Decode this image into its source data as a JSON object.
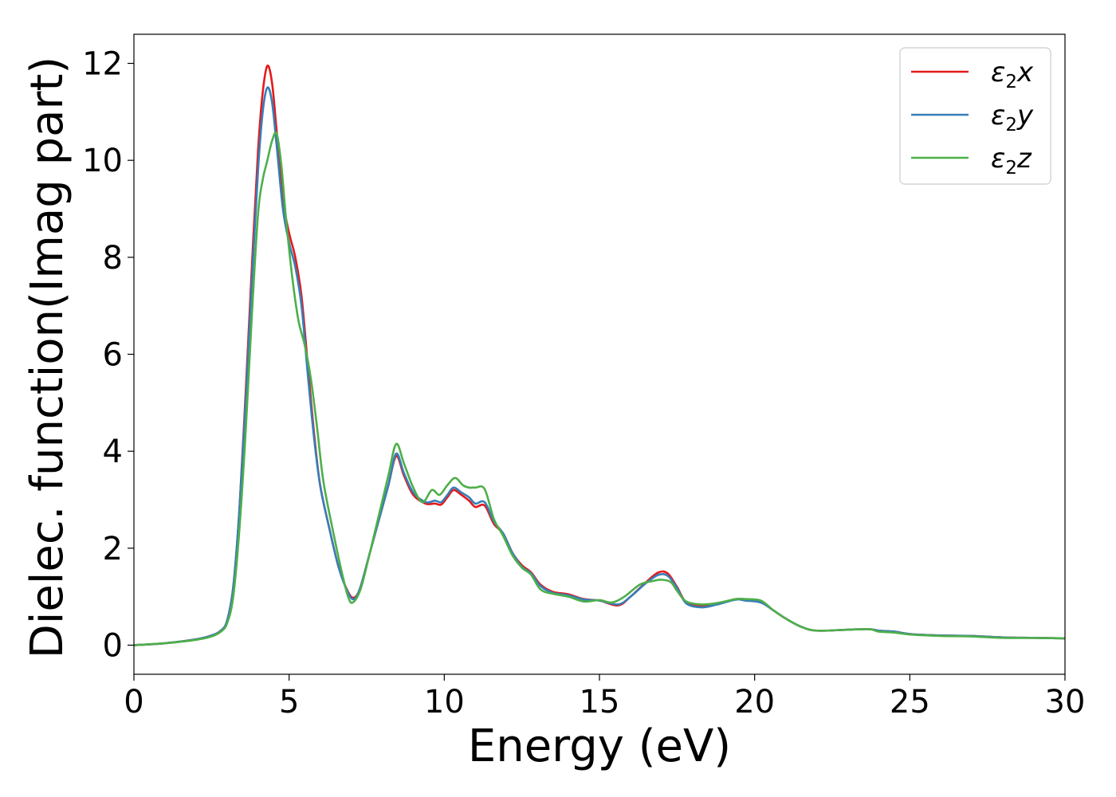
{
  "chart_data": {
    "type": "line",
    "xlabel": "Energy (eV)",
    "ylabel": "Dielec. function(Imag part)",
    "xlim": [
      0,
      30
    ],
    "ylim": [
      -0.6,
      12.6
    ],
    "xticks": [
      0,
      5,
      10,
      15,
      20,
      25,
      30
    ],
    "yticks": [
      0,
      2,
      4,
      6,
      8,
      10,
      12
    ],
    "grid": false,
    "legend_position": "top-right",
    "series": [
      {
        "name": "ε₂x",
        "legend_main": "ε",
        "legend_sub": "2",
        "legend_suffix": "x",
        "color": "#e41a1c",
        "points": [
          [
            0,
            0
          ],
          [
            1,
            0.04
          ],
          [
            2,
            0.12
          ],
          [
            2.5,
            0.2
          ],
          [
            2.8,
            0.3
          ],
          [
            3.0,
            0.5
          ],
          [
            3.2,
            1.2
          ],
          [
            3.4,
            2.8
          ],
          [
            3.6,
            5.2
          ],
          [
            3.8,
            7.8
          ],
          [
            4.0,
            10.2
          ],
          [
            4.15,
            11.4
          ],
          [
            4.3,
            11.95
          ],
          [
            4.45,
            11.6
          ],
          [
            4.6,
            10.6
          ],
          [
            4.8,
            9.2
          ],
          [
            5.0,
            8.5
          ],
          [
            5.2,
            8.0
          ],
          [
            5.4,
            7.2
          ],
          [
            5.6,
            5.8
          ],
          [
            5.8,
            4.4
          ],
          [
            6.0,
            3.3
          ],
          [
            6.3,
            2.4
          ],
          [
            6.6,
            1.6
          ],
          [
            6.9,
            1.1
          ],
          [
            7.1,
            0.98
          ],
          [
            7.3,
            1.2
          ],
          [
            7.6,
            1.9
          ],
          [
            7.9,
            2.6
          ],
          [
            8.2,
            3.3
          ],
          [
            8.45,
            3.9
          ],
          [
            8.7,
            3.5
          ],
          [
            9.0,
            3.1
          ],
          [
            9.4,
            2.92
          ],
          [
            9.7,
            2.92
          ],
          [
            9.9,
            2.9
          ],
          [
            10.1,
            3.05
          ],
          [
            10.3,
            3.2
          ],
          [
            10.55,
            3.1
          ],
          [
            10.8,
            2.98
          ],
          [
            11.0,
            2.85
          ],
          [
            11.3,
            2.88
          ],
          [
            11.6,
            2.5
          ],
          [
            11.9,
            2.3
          ],
          [
            12.2,
            1.9
          ],
          [
            12.5,
            1.65
          ],
          [
            12.8,
            1.5
          ],
          [
            13.1,
            1.25
          ],
          [
            13.5,
            1.1
          ],
          [
            14.0,
            1.05
          ],
          [
            14.5,
            0.95
          ],
          [
            15.0,
            0.92
          ],
          [
            15.6,
            0.82
          ],
          [
            16.0,
            1.0
          ],
          [
            16.5,
            1.3
          ],
          [
            16.9,
            1.5
          ],
          [
            17.2,
            1.48
          ],
          [
            17.5,
            1.2
          ],
          [
            17.8,
            0.88
          ],
          [
            18.3,
            0.8
          ],
          [
            18.8,
            0.85
          ],
          [
            19.4,
            0.95
          ],
          [
            19.7,
            0.93
          ],
          [
            20.2,
            0.9
          ],
          [
            20.6,
            0.72
          ],
          [
            21.0,
            0.55
          ],
          [
            21.5,
            0.38
          ],
          [
            22.0,
            0.3
          ],
          [
            23.0,
            0.32
          ],
          [
            23.7,
            0.33
          ],
          [
            24.0,
            0.3
          ],
          [
            24.5,
            0.28
          ],
          [
            25.0,
            0.23
          ],
          [
            26.0,
            0.2
          ],
          [
            27.0,
            0.19
          ],
          [
            28.0,
            0.16
          ],
          [
            29.0,
            0.15
          ],
          [
            30.0,
            0.14
          ]
        ]
      },
      {
        "name": "ε₂y",
        "legend_main": "ε",
        "legend_sub": "2",
        "legend_suffix": "y",
        "color": "#377eb8",
        "points": [
          [
            0,
            0
          ],
          [
            1,
            0.04
          ],
          [
            2,
            0.12
          ],
          [
            2.5,
            0.2
          ],
          [
            2.8,
            0.3
          ],
          [
            3.0,
            0.5
          ],
          [
            3.2,
            1.2
          ],
          [
            3.4,
            2.8
          ],
          [
            3.6,
            5.0
          ],
          [
            3.8,
            7.5
          ],
          [
            4.0,
            9.8
          ],
          [
            4.15,
            11.0
          ],
          [
            4.3,
            11.5
          ],
          [
            4.45,
            11.2
          ],
          [
            4.6,
            10.3
          ],
          [
            4.8,
            9.0
          ],
          [
            5.0,
            8.3
          ],
          [
            5.2,
            7.8
          ],
          [
            5.4,
            7.0
          ],
          [
            5.6,
            5.6
          ],
          [
            5.8,
            4.3
          ],
          [
            6.0,
            3.3
          ],
          [
            6.3,
            2.4
          ],
          [
            6.6,
            1.6
          ],
          [
            6.9,
            1.08
          ],
          [
            7.1,
            0.95
          ],
          [
            7.3,
            1.2
          ],
          [
            7.6,
            1.9
          ],
          [
            7.9,
            2.6
          ],
          [
            8.2,
            3.3
          ],
          [
            8.45,
            3.95
          ],
          [
            8.7,
            3.55
          ],
          [
            9.0,
            3.15
          ],
          [
            9.4,
            2.95
          ],
          [
            9.7,
            2.98
          ],
          [
            9.9,
            2.95
          ],
          [
            10.1,
            3.1
          ],
          [
            10.3,
            3.25
          ],
          [
            10.55,
            3.15
          ],
          [
            10.8,
            3.05
          ],
          [
            11.0,
            2.92
          ],
          [
            11.3,
            2.95
          ],
          [
            11.6,
            2.55
          ],
          [
            11.9,
            2.3
          ],
          [
            12.2,
            1.9
          ],
          [
            12.5,
            1.62
          ],
          [
            12.8,
            1.48
          ],
          [
            13.1,
            1.22
          ],
          [
            13.5,
            1.08
          ],
          [
            14.0,
            1.03
          ],
          [
            14.5,
            0.94
          ],
          [
            15.0,
            0.92
          ],
          [
            15.6,
            0.84
          ],
          [
            16.0,
            1.0
          ],
          [
            16.5,
            1.28
          ],
          [
            16.9,
            1.45
          ],
          [
            17.2,
            1.43
          ],
          [
            17.5,
            1.18
          ],
          [
            17.8,
            0.86
          ],
          [
            18.3,
            0.78
          ],
          [
            18.8,
            0.84
          ],
          [
            19.4,
            0.94
          ],
          [
            19.7,
            0.92
          ],
          [
            20.2,
            0.88
          ],
          [
            20.6,
            0.72
          ],
          [
            21.0,
            0.55
          ],
          [
            21.5,
            0.38
          ],
          [
            22.0,
            0.3
          ],
          [
            23.0,
            0.32
          ],
          [
            23.7,
            0.33
          ],
          [
            24.0,
            0.3
          ],
          [
            24.5,
            0.28
          ],
          [
            25.0,
            0.23
          ],
          [
            26.0,
            0.2
          ],
          [
            27.0,
            0.19
          ],
          [
            28.0,
            0.16
          ],
          [
            29.0,
            0.15
          ],
          [
            30.0,
            0.14
          ]
        ]
      },
      {
        "name": "ε₂z",
        "legend_main": "ε",
        "legend_sub": "2",
        "legend_suffix": "z",
        "color": "#4daf4a",
        "points": [
          [
            0,
            0
          ],
          [
            1,
            0.04
          ],
          [
            2,
            0.11
          ],
          [
            2.5,
            0.18
          ],
          [
            2.8,
            0.28
          ],
          [
            3.0,
            0.45
          ],
          [
            3.2,
            1.0
          ],
          [
            3.4,
            2.4
          ],
          [
            3.6,
            4.4
          ],
          [
            3.8,
            6.8
          ],
          [
            4.0,
            8.9
          ],
          [
            4.15,
            9.6
          ],
          [
            4.3,
            10.0
          ],
          [
            4.45,
            10.4
          ],
          [
            4.6,
            10.55
          ],
          [
            4.75,
            9.9
          ],
          [
            4.9,
            8.8
          ],
          [
            5.1,
            7.6
          ],
          [
            5.3,
            6.7
          ],
          [
            5.5,
            6.2
          ],
          [
            5.7,
            5.5
          ],
          [
            5.9,
            4.5
          ],
          [
            6.1,
            3.4
          ],
          [
            6.4,
            2.4
          ],
          [
            6.7,
            1.5
          ],
          [
            6.9,
            1.0
          ],
          [
            7.05,
            0.88
          ],
          [
            7.3,
            1.15
          ],
          [
            7.6,
            1.9
          ],
          [
            7.9,
            2.7
          ],
          [
            8.2,
            3.5
          ],
          [
            8.45,
            4.15
          ],
          [
            8.7,
            3.75
          ],
          [
            9.0,
            3.25
          ],
          [
            9.3,
            2.95
          ],
          [
            9.6,
            3.2
          ],
          [
            9.85,
            3.1
          ],
          [
            10.1,
            3.3
          ],
          [
            10.35,
            3.45
          ],
          [
            10.6,
            3.3
          ],
          [
            10.8,
            3.25
          ],
          [
            11.0,
            3.25
          ],
          [
            11.3,
            3.22
          ],
          [
            11.6,
            2.6
          ],
          [
            11.9,
            2.25
          ],
          [
            12.2,
            1.85
          ],
          [
            12.5,
            1.6
          ],
          [
            12.8,
            1.45
          ],
          [
            13.1,
            1.15
          ],
          [
            13.5,
            1.06
          ],
          [
            14.0,
            1.0
          ],
          [
            14.5,
            0.9
          ],
          [
            15.0,
            0.93
          ],
          [
            15.4,
            0.88
          ],
          [
            15.8,
            1.0
          ],
          [
            16.3,
            1.25
          ],
          [
            16.7,
            1.32
          ],
          [
            17.0,
            1.35
          ],
          [
            17.3,
            1.3
          ],
          [
            17.5,
            1.12
          ],
          [
            17.8,
            0.9
          ],
          [
            18.3,
            0.84
          ],
          [
            18.8,
            0.87
          ],
          [
            19.4,
            0.95
          ],
          [
            19.7,
            0.95
          ],
          [
            20.2,
            0.92
          ],
          [
            20.6,
            0.72
          ],
          [
            21.0,
            0.55
          ],
          [
            21.5,
            0.38
          ],
          [
            22.0,
            0.3
          ],
          [
            23.0,
            0.32
          ],
          [
            23.7,
            0.33
          ],
          [
            24.0,
            0.28
          ],
          [
            24.5,
            0.26
          ],
          [
            25.0,
            0.22
          ],
          [
            26.0,
            0.19
          ],
          [
            27.0,
            0.18
          ],
          [
            28.0,
            0.15
          ],
          [
            29.0,
            0.15
          ],
          [
            30.0,
            0.14
          ]
        ]
      }
    ]
  }
}
